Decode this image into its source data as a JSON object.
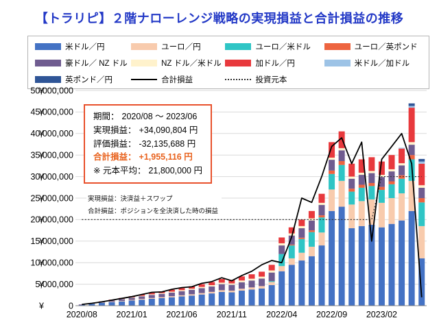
{
  "page": {
    "title": "【トラリピ】２階ナローレンジ戦略の実現損益と合計損益の推移",
    "title_color": "#2238C6",
    "background": "#FFFFFF"
  },
  "legend": {
    "items": [
      {
        "label": "米ドル／円",
        "color": "#4472C4",
        "type": "box"
      },
      {
        "label": "ユーロ／円",
        "color": "#F8CBAD",
        "type": "box"
      },
      {
        "label": "ユーロ／米ドル",
        "color": "#2FC5C5",
        "type": "box"
      },
      {
        "label": "ユーロ／英ポンド",
        "color": "#ED6440",
        "type": "box"
      },
      {
        "label": "豪ドル／ NZ ドル",
        "color": "#6F5C90",
        "type": "box"
      },
      {
        "label": "NZ ドル／米ドル",
        "color": "#FFF2CC",
        "type": "box"
      },
      {
        "label": "加ドル／円",
        "color": "#E8393D",
        "type": "box"
      },
      {
        "label": "米ドル／加ドル",
        "color": "#9DC3E6",
        "type": "box"
      },
      {
        "label": "英ポンド／円",
        "color": "#2F5597",
        "type": "box"
      },
      {
        "label": "合計損益",
        "color": "#000000",
        "type": "line"
      },
      {
        "label": "投資元本",
        "color": "#333333",
        "type": "dotted"
      }
    ]
  },
  "annotation": {
    "border_color": "#E8502B",
    "emphasis_color": "#E8611C",
    "lines": [
      {
        "label": "期間：",
        "value": "2020/08 ～ 2023/06",
        "emphasis": false
      },
      {
        "label": "実現損益：",
        "value": "+34,090,804 円",
        "emphasis": false
      },
      {
        "label": "評価損益：",
        "value": "-32,135,688 円",
        "emphasis": false
      },
      {
        "label": "合計損益：",
        "value": "+1,955,116 円",
        "emphasis": true
      },
      {
        "label": "※ 元本平均：",
        "value": "21,800,000 円",
        "emphasis": false
      }
    ]
  },
  "notes": [
    "実現損益：決済益＋スワップ",
    "合計損益：ポジションを全決済した時の損益"
  ],
  "chart_data": {
    "type": "bar",
    "stacked": true,
    "unit": "million JPY",
    "grid": true,
    "ylim": [
      0,
      50
    ],
    "y_tick_step": 5,
    "y_axis": {
      "currency_symbol": "¥",
      "tick_labels": [
        "0",
        "5,000,000",
        "10,000,000",
        "15,000,000",
        "20,000,000",
        "25,000,000",
        "30,000,000",
        "35,000,000",
        "40,000,000",
        "45,000,000",
        "50,000,000"
      ]
    },
    "x_axis": {
      "tick_labels": [
        "2020/08",
        "2021/01",
        "2021/06",
        "2021/11",
        "2022/04",
        "2022/09",
        "2023/02"
      ],
      "tick_indices": [
        0,
        5,
        10,
        15,
        20,
        25,
        30
      ]
    },
    "x": [
      "2020/08",
      "2020/09",
      "2020/10",
      "2020/11",
      "2020/12",
      "2021/01",
      "2021/02",
      "2021/03",
      "2021/04",
      "2021/05",
      "2021/06",
      "2021/07",
      "2021/08",
      "2021/09",
      "2021/10",
      "2021/11",
      "2021/12",
      "2022/01",
      "2022/02",
      "2022/03",
      "2022/04",
      "2022/05",
      "2022/06",
      "2022/07",
      "2022/08",
      "2022/09",
      "2022/10",
      "2022/11",
      "2022/12",
      "2023/01",
      "2023/02",
      "2023/03",
      "2023/04",
      "2023/05",
      "2023/06"
    ],
    "series": [
      {
        "id": "usd_jpy",
        "name": "米ドル／円",
        "color": "#4472C4",
        "values": [
          0.25,
          0.45,
          0.7,
          0.85,
          1.0,
          1.2,
          1.4,
          1.6,
          1.75,
          1.95,
          2.15,
          2.35,
          2.6,
          2.85,
          3.2,
          3.1,
          3.5,
          3.75,
          4.0,
          4.8,
          8.0,
          9.5,
          10.5,
          11.5,
          14.0,
          22.0,
          23.0,
          18.0,
          18.5,
          18.8,
          18.2,
          19.0,
          19.8,
          22.0,
          10.990804
        ]
      },
      {
        "id": "eur_jpy",
        "name": "ユーロ／円",
        "color": "#F8CBAD",
        "values": [
          0,
          0.05,
          0.08,
          0.1,
          0.12,
          0.15,
          0.18,
          0.2,
          0.22,
          0.25,
          0.27,
          0.3,
          0.33,
          0.36,
          0.4,
          0.4,
          0.45,
          0.5,
          0.55,
          0.7,
          1.2,
          1.5,
          1.8,
          2.2,
          3.0,
          5.0,
          6.0,
          5.5,
          5.8,
          5.9,
          5.7,
          6.0,
          6.3,
          7.0,
          7.5
        ]
      },
      {
        "id": "eur_usd",
        "name": "ユーロ／米ドル",
        "color": "#2FC5C5",
        "values": [
          0,
          0,
          0,
          0,
          0,
          0,
          0,
          0,
          0,
          0,
          0,
          0,
          0,
          0,
          0,
          0,
          0,
          0,
          0,
          0.2,
          2.8,
          3.0,
          3.2,
          3.4,
          3.5,
          3.6,
          3.7,
          3.0,
          3.1,
          3.1,
          3.0,
          3.2,
          3.4,
          5.0,
          5.5
        ]
      },
      {
        "id": "eur_gbp",
        "name": "ユーロ／英ポンド",
        "color": "#ED6440",
        "values": [
          0,
          0,
          0,
          0,
          0,
          0,
          0,
          0,
          0,
          0,
          0,
          0,
          0,
          0,
          0,
          0,
          0,
          0,
          0,
          0,
          0,
          0.2,
          0.3,
          0.4,
          0.5,
          0.8,
          0.9,
          0.7,
          0.7,
          0.7,
          0.7,
          0.7,
          0.8,
          1.0,
          1.0
        ]
      },
      {
        "id": "aud_nzd",
        "name": "豪ドル／ NZ ドル",
        "color": "#6F5C90",
        "values": [
          0,
          0,
          0.1,
          0.25,
          0.4,
          0.5,
          0.6,
          0.7,
          0.78,
          0.85,
          0.95,
          1.05,
          1.15,
          1.27,
          1.4,
          1.35,
          1.5,
          1.6,
          1.75,
          2.0,
          2.0,
          2.1,
          2.2,
          2.3,
          2.4,
          2.5,
          2.5,
          2.3,
          2.3,
          2.3,
          2.3,
          2.3,
          2.3,
          2.4,
          2.4
        ]
      },
      {
        "id": "nzd_usd",
        "name": "NZ ドル／米ドル",
        "color": "#FFF2CC",
        "values": [
          0,
          0,
          0,
          0.05,
          0.08,
          0.1,
          0.12,
          0.15,
          0.17,
          0.2,
          0.23,
          0.25,
          0.28,
          0.3,
          0.35,
          0.33,
          0.4,
          0.42,
          0.45,
          0.5,
          0.5,
          0.5,
          0.5,
          0.5,
          0.5,
          0.5,
          0.5,
          0.5,
          0.5,
          0.5,
          0.5,
          0.5,
          0.5,
          0.6,
          0.6
        ]
      },
      {
        "id": "cad_jpy",
        "name": "加ドル／円",
        "color": "#E8393D",
        "values": [
          0.05,
          0.1,
          0.12,
          0.15,
          0.2,
          0.25,
          0.3,
          0.35,
          0.38,
          0.45,
          0.5,
          0.55,
          0.64,
          0.72,
          0.85,
          0.82,
          0.95,
          1.03,
          1.15,
          1.3,
          1.35,
          1.4,
          1.5,
          1.7,
          2.1,
          3.6,
          3.9,
          3.0,
          3.1,
          3.2,
          3.1,
          3.3,
          3.4,
          8.0,
          5.0
        ]
      },
      {
        "id": "usd_cad",
        "name": "米ドル／加ドル",
        "color": "#9DC3E6",
        "values": [
          0,
          0,
          0,
          0,
          0,
          0,
          0,
          0,
          0,
          0,
          0,
          0,
          0,
          0,
          0,
          0,
          0,
          0,
          0,
          0,
          0,
          0,
          0,
          0,
          0,
          0,
          0,
          0,
          0,
          0,
          0,
          0,
          0.2,
          0.4,
          0.5
        ]
      },
      {
        "id": "gbp_jpy",
        "name": "英ポンド／円",
        "color": "#2F5597",
        "values": [
          0,
          0,
          0,
          0,
          0,
          0,
          0,
          0,
          0,
          0,
          0,
          0,
          0,
          0,
          0,
          0,
          0,
          0,
          0,
          0,
          0,
          0,
          0,
          0,
          0,
          0,
          0,
          0,
          0,
          0,
          0,
          0,
          0,
          0.6,
          0.6
        ]
      }
    ],
    "total_line": {
      "name": "合計損益",
      "color": "#000000",
      "values": [
        0.3,
        0.55,
        0.9,
        1.3,
        1.7,
        2.1,
        2.6,
        3.1,
        3.2,
        3.8,
        4.2,
        4.4,
        5.2,
        5.6,
        6.5,
        5.8,
        7.0,
        8.0,
        9.5,
        10.5,
        10.0,
        16.0,
        25.0,
        24.0,
        30.0,
        37.0,
        39.0,
        33.0,
        38.0,
        15.0,
        34.0,
        37.0,
        40.0,
        33.0,
        1.955116
      ]
    },
    "principal": {
      "name": "投資元本",
      "color": "#333333",
      "style": "dotted",
      "values": [
        20,
        20,
        20,
        20,
        20,
        20,
        20,
        20,
        20,
        20,
        20,
        20,
        20,
        20,
        20,
        20,
        20,
        20,
        20,
        20,
        20,
        20,
        20,
        20,
        20,
        20,
        20,
        20,
        20,
        20,
        30,
        30,
        30,
        30,
        30
      ]
    }
  }
}
